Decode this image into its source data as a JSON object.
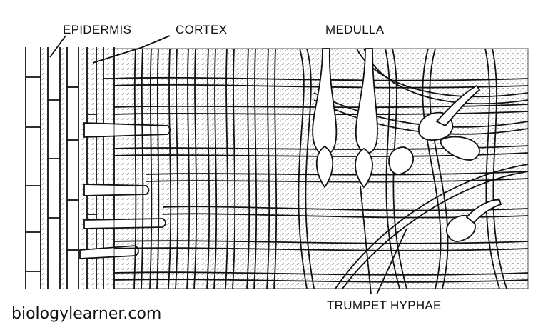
{
  "labels": {
    "epidermis": "EPIDERMIS",
    "cortex": "CORTEX",
    "medulla": "MEDULLA",
    "trumpet_hyphae": "TRUMPET HYPHAE"
  },
  "watermark": "biologylearner.com",
  "colors": {
    "ink": "#111111",
    "background": "#ffffff",
    "stipple": "#2a2a2a"
  }
}
